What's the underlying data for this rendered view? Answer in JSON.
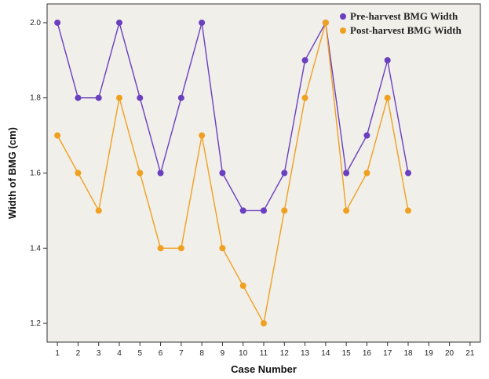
{
  "chart_data": {
    "type": "line",
    "xlabel": "Case Number",
    "ylabel": "Width of BMG (cm)",
    "x_ticks": [
      1,
      2,
      3,
      4,
      5,
      6,
      7,
      8,
      9,
      10,
      11,
      12,
      13,
      14,
      15,
      16,
      17,
      18,
      19,
      20,
      21
    ],
    "xlim": [
      0.5,
      21.5
    ],
    "ylim": [
      1.15,
      2.05
    ],
    "y_ticks": [
      1.2,
      1.4,
      1.6,
      1.8,
      2.0
    ],
    "y_tick_labels": [
      "1.2",
      "1.4",
      "1.6",
      "1.8",
      "2.0"
    ],
    "grid": false,
    "legend_position": "top-right",
    "background": "#f0efe9",
    "series": [
      {
        "name": "Pre-harvest BMG Width",
        "color": "#6a3fc0",
        "x": [
          1,
          2,
          3,
          4,
          5,
          6,
          7,
          8,
          9,
          10,
          11,
          12,
          13,
          14,
          15,
          16,
          17,
          18
        ],
        "values": [
          2.0,
          1.8,
          1.8,
          2.0,
          1.8,
          1.6,
          1.8,
          2.0,
          1.6,
          1.5,
          1.5,
          1.6,
          1.9,
          2.0,
          1.6,
          1.7,
          1.9,
          1.6
        ]
      },
      {
        "name": "Post-harvest BMG Width",
        "color": "#f0a020",
        "x": [
          1,
          2,
          3,
          4,
          5,
          6,
          7,
          8,
          9,
          10,
          11,
          12,
          13,
          14,
          15,
          16,
          17,
          18
        ],
        "values": [
          1.7,
          1.6,
          1.5,
          1.8,
          1.6,
          1.4,
          1.4,
          1.7,
          1.4,
          1.3,
          1.2,
          1.5,
          1.8,
          2.0,
          1.5,
          1.6,
          1.8,
          1.5
        ]
      }
    ]
  }
}
